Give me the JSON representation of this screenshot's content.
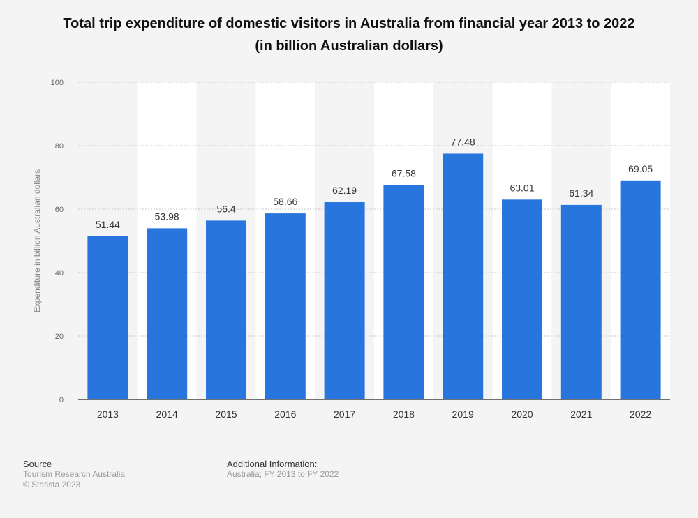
{
  "title_line1": "Total trip expenditure of domestic visitors in Australia from financial year 2013 to 2022",
  "title_line2": "(in billion Australian dollars)",
  "chart_data": {
    "type": "bar",
    "categories": [
      "2013",
      "2014",
      "2015",
      "2016",
      "2017",
      "2018",
      "2019",
      "2020",
      "2021",
      "2022"
    ],
    "values": [
      51.44,
      53.98,
      56.4,
      58.66,
      62.19,
      67.58,
      77.48,
      63.01,
      61.34,
      69.05
    ],
    "value_labels": [
      "51.44",
      "53.98",
      "56.4",
      "58.66",
      "62.19",
      "67.58",
      "77.48",
      "63.01",
      "61.34",
      "69.05"
    ],
    "ylabel": "Expenditure in billion Australian dollars",
    "ylim": [
      0,
      100
    ],
    "yticks": [
      "0",
      "20",
      "40",
      "60",
      "80",
      "100"
    ],
    "grid": true,
    "bar_color": "#2876dd"
  },
  "footer": {
    "source_heading": "Source",
    "source_line1": "Tourism Research Australia",
    "source_line2": "© Statista 2023",
    "info_heading": "Additional Information:",
    "info_line1": "Australia; FY 2013 to FY 2022"
  }
}
